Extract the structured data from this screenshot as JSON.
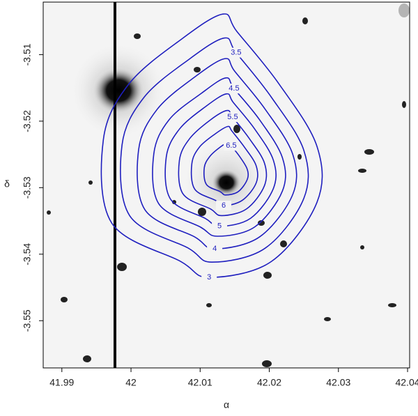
{
  "chart_data": {
    "type": "contour",
    "xlabel": "α",
    "ylabel": "δ",
    "xlim": [
      41.9873,
      42.0403
    ],
    "ylim": [
      -3.5571,
      -3.5021
    ],
    "xticks": [
      41.99,
      42.0,
      42.01,
      42.02,
      42.03,
      42.04
    ],
    "yticks": [
      -3.51,
      -3.52,
      -3.53,
      -3.54,
      -3.55
    ],
    "color": "#1f1fbf",
    "contours": [
      {
        "level": 3,
        "x": [
          42.0133,
          42.0074,
          41.9997,
          41.996,
          41.9972,
          42.0072,
          42.0113,
          42.0203,
          42.0269,
          42.0269,
          42.0214,
          42.0153
        ],
        "y": [
          -3.5039,
          -3.5076,
          -3.5144,
          -3.5228,
          -3.5353,
          -3.5411,
          -3.5435,
          -3.5411,
          -3.5322,
          -3.5238,
          -3.5144,
          -3.5065
        ]
      },
      {
        "level": 3.5,
        "x": [
          42.0135,
          42.0084,
          42.0019,
          41.9987,
          41.9998,
          42.0083,
          42.0117,
          42.0194,
          42.025,
          42.025,
          42.0203,
          42.0152
        ],
        "y": [
          -3.5075,
          -3.5107,
          -3.5164,
          -3.5236,
          -3.5342,
          -3.5391,
          -3.5412,
          -3.5391,
          -3.5316,
          -3.5244,
          -3.5164,
          -3.5097
        ]
      },
      {
        "level": 4,
        "x": [
          42.0136,
          42.0093,
          42.0038,
          42.0011,
          42.002,
          42.0092,
          42.0121,
          42.0186,
          42.0234,
          42.0234,
          42.0194,
          42.015
        ],
        "y": [
          -3.5106,
          -3.5133,
          -3.5182,
          -3.5243,
          -3.5333,
          -3.5374,
          -3.5392,
          -3.5374,
          -3.531,
          -3.525,
          -3.5182,
          -3.5125
        ]
      },
      {
        "level": 4.5,
        "x": [
          42.0137,
          42.0102,
          42.0055,
          42.0033,
          42.004,
          42.01,
          42.0125,
          42.0179,
          42.0219,
          42.0219,
          42.0186,
          42.0149
        ],
        "y": [
          -3.5135,
          -3.5158,
          -3.5198,
          -3.5249,
          -3.5324,
          -3.5359,
          -3.5373,
          -3.5359,
          -3.5305,
          -3.5255,
          -3.5198,
          -3.5151
        ]
      },
      {
        "level": 5,
        "x": [
          42.0138,
          42.0108,
          42.007,
          42.0051,
          42.0057,
          42.0107,
          42.0128,
          42.0173,
          42.0206,
          42.0206,
          42.0179,
          42.0148
        ],
        "y": [
          -3.5159,
          -3.5178,
          -3.5212,
          -3.5254,
          -3.5317,
          -3.5346,
          -3.5358,
          -3.5346,
          -3.5301,
          -3.5259,
          -3.5212,
          -3.5172
        ]
      },
      {
        "level": 5.5,
        "x": [
          42.0139,
          42.0115,
          42.0085,
          42.007,
          42.0075,
          42.0115,
          42.0131,
          42.0167,
          42.0193,
          42.0193,
          42.0171,
          42.0147
        ],
        "y": [
          -3.5184,
          -3.5198,
          -3.5226,
          -3.5259,
          -3.5309,
          -3.5332,
          -3.5342,
          -3.5332,
          -3.5297,
          -3.5263,
          -3.5226,
          -3.5194
        ]
      },
      {
        "level": 6,
        "x": [
          42.014,
          42.0122,
          42.0099,
          42.0088,
          42.0092,
          42.0122,
          42.0134,
          42.0161,
          42.0181,
          42.0181,
          42.0164,
          42.0146
        ],
        "y": [
          -3.5208,
          -3.5219,
          -3.5239,
          -3.5264,
          -3.5302,
          -3.5319,
          -3.5327,
          -3.5319,
          -3.5293,
          -3.5267,
          -3.5239,
          -3.5215
        ]
      },
      {
        "level": 6.5,
        "x": [
          42.0141,
          42.0129,
          42.0114,
          42.0106,
          42.0109,
          42.0129,
          42.0137,
          42.0155,
          42.0168,
          42.0168,
          42.0157,
          42.0145
        ],
        "y": [
          -3.5232,
          -3.5239,
          -3.5253,
          -3.527,
          -3.5295,
          -3.5306,
          -3.5311,
          -3.5306,
          -3.5288,
          -3.5272,
          -3.5253,
          -3.5237
        ]
      }
    ]
  }
}
